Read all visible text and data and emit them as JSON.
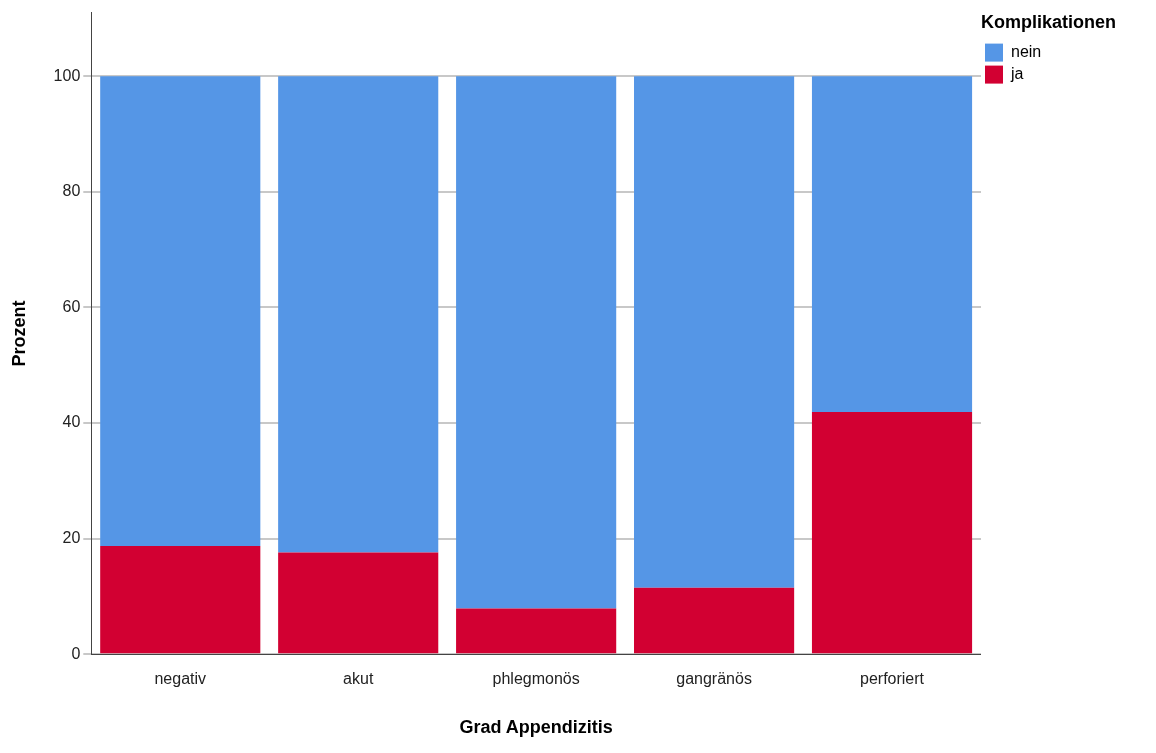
{
  "chart_data": {
    "type": "bar",
    "stacked": true,
    "xlabel": "Grad Appendizitis",
    "ylabel": "Prozent",
    "legend_title": "Komplikationen",
    "legend": "top right",
    "grid": "y",
    "categories": [
      "negativ",
      "akut",
      "phlegmonös",
      "gangränös",
      "perforiert"
    ],
    "series": [
      {
        "name": "ja",
        "color": "#d20032",
        "values": [
          18.7,
          17.6,
          7.9,
          11.5,
          41.9
        ]
      },
      {
        "name": "nein",
        "color": "#5596e6",
        "values": [
          81.3,
          82.4,
          92.1,
          88.5,
          58.1
        ]
      }
    ],
    "ylim": [
      0,
      111
    ],
    "yticks": [
      0,
      20,
      40,
      60,
      80,
      100
    ]
  }
}
